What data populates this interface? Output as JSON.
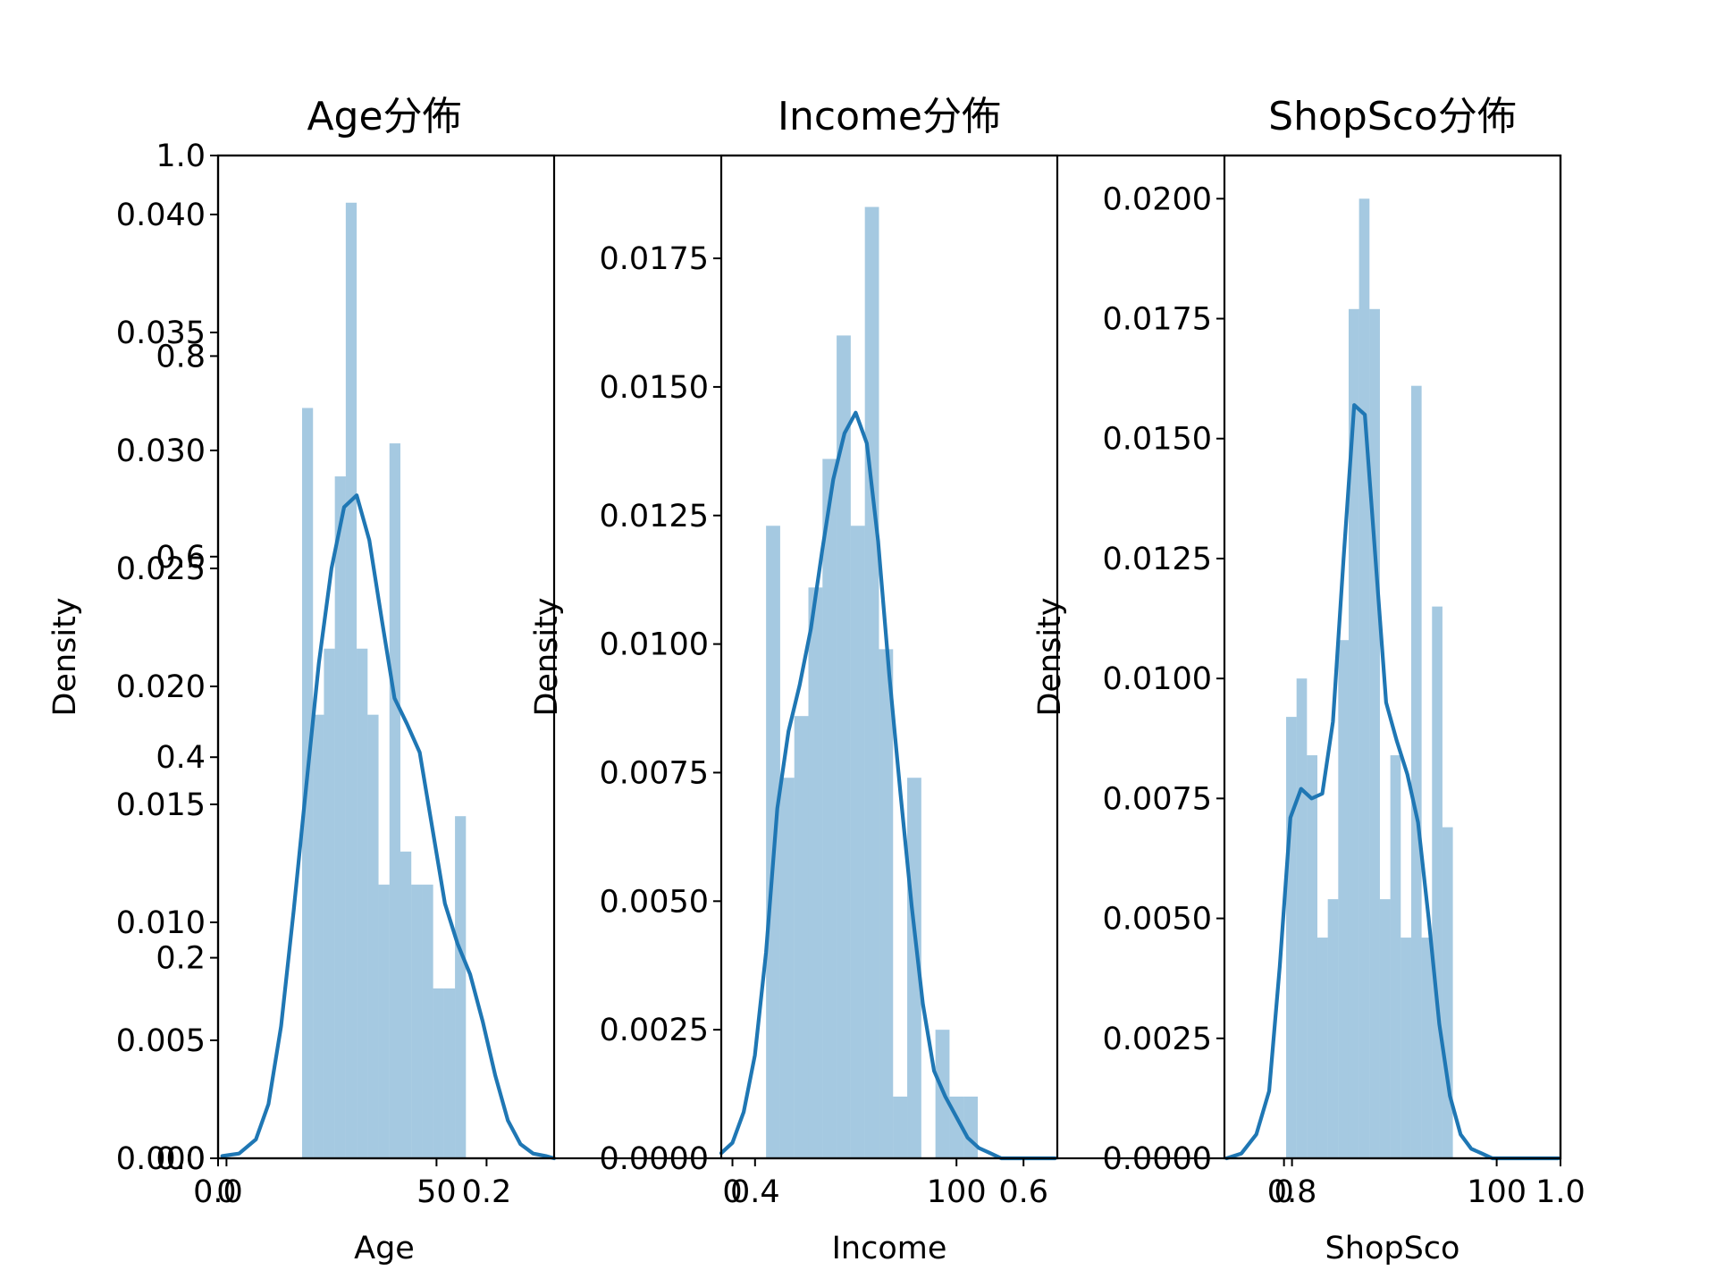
{
  "chart_data": [
    {
      "type": "bar",
      "id": "age",
      "title": "Age分佈",
      "xlabel": "Age",
      "ylabel": "Density",
      "xlim": [
        -2,
        78
      ],
      "ylim": [
        0,
        0.0425
      ],
      "xticks": [
        0,
        50
      ],
      "yticks": [
        "0.000",
        "0.005",
        "0.010",
        "0.015",
        "0.020",
        "0.025",
        "0.030",
        "0.035",
        "0.040"
      ],
      "bins": {
        "edges": [
          18,
          20.6,
          23.2,
          25.8,
          28.4,
          31,
          33.6,
          36.2,
          38.8,
          41.4,
          44,
          46.6,
          49.2,
          51.8,
          54.4,
          57,
          59.6,
          62.2,
          64.8,
          67.4,
          70
        ],
        "heights": [
          0.0318,
          0.0188,
          0.0216,
          0.0289,
          0.0405,
          0.0216,
          0.0188,
          0.0116,
          0.0303,
          0.013,
          0.0116,
          0.0116,
          0.0072,
          0.0072,
          0.0145,
          0,
          0,
          0,
          0,
          0
        ]
      },
      "kde": {
        "x": [
          -1,
          3,
          7,
          10,
          13,
          16,
          19,
          22,
          25,
          28,
          31,
          34,
          37,
          40,
          43,
          46,
          49,
          52,
          55,
          58,
          61,
          64,
          67,
          70,
          73,
          76,
          78
        ],
        "y": [
          0.0001,
          0.0002,
          0.0008,
          0.0023,
          0.0056,
          0.0105,
          0.0158,
          0.021,
          0.025,
          0.0276,
          0.0281,
          0.0262,
          0.0228,
          0.0195,
          0.0184,
          0.0172,
          0.014,
          0.0108,
          0.0091,
          0.0078,
          0.0058,
          0.0035,
          0.0016,
          0.0006,
          0.0002,
          0.0001,
          0
        ]
      }
    },
    {
      "type": "bar",
      "id": "income",
      "title": "Income分佈",
      "xlabel": "Income",
      "ylabel": "Density",
      "xlim": [
        -5,
        145
      ],
      "ylim": [
        0,
        0.0195
      ],
      "xticks": [
        0,
        100
      ],
      "yticks": [
        "0.0000",
        "0.0025",
        "0.0050",
        "0.0075",
        "0.0100",
        "0.0125",
        "0.0150",
        "0.0175"
      ],
      "bins": {
        "edges": [
          15,
          21.3,
          27.6,
          33.9,
          40.2,
          46.5,
          52.8,
          59.1,
          65.4,
          71.7,
          78,
          84.3,
          90.6,
          96.9,
          103.2,
          109.5,
          115.8,
          122.1,
          128.4,
          134.7,
          141
        ],
        "heights": [
          0.0123,
          0.0074,
          0.0086,
          0.0111,
          0.0136,
          0.016,
          0.0123,
          0.0185,
          0.0099,
          0.0012,
          0.0074,
          0,
          0.0025,
          0.0012,
          0.0012,
          0,
          0,
          0,
          0,
          0
        ]
      },
      "kde": {
        "x": [
          -5,
          0,
          5,
          10,
          15,
          20,
          25,
          30,
          35,
          40,
          45,
          50,
          55,
          60,
          65,
          70,
          75,
          80,
          85,
          90,
          95,
          100,
          105,
          110,
          115,
          120,
          125,
          130,
          135,
          140,
          144
        ],
        "y": [
          0.0001,
          0.0003,
          0.0009,
          0.002,
          0.004,
          0.0068,
          0.0083,
          0.0092,
          0.0103,
          0.0118,
          0.0132,
          0.0141,
          0.0145,
          0.0139,
          0.012,
          0.0094,
          0.0071,
          0.0049,
          0.003,
          0.0017,
          0.0012,
          0.0008,
          0.0004,
          0.0002,
          0.0001,
          0,
          0,
          0,
          0,
          0,
          0
        ]
      }
    },
    {
      "type": "bar",
      "id": "shopsco",
      "title": "ShopSco分佈",
      "xlabel": "ShopSco",
      "ylabel": "Density",
      "xlim": [
        -28,
        130
      ],
      "ylim": [
        0,
        0.0209
      ],
      "xticks": [
        0,
        100
      ],
      "yticks": [
        "0.0000",
        "0.0025",
        "0.0050",
        "0.0075",
        "0.0100",
        "0.0125",
        "0.0150",
        "0.0175",
        "0.0200"
      ],
      "bins": {
        "edges": [
          1,
          5.9,
          10.8,
          15.7,
          20.6,
          25.5,
          30.4,
          35.3,
          40.2,
          45.1,
          50,
          54.9,
          59.8,
          64.7,
          69.6,
          74.5,
          79.4,
          84.3,
          89.2,
          94.1,
          99
        ],
        "heights": [
          0.0092,
          0.01,
          0.0084,
          0.0046,
          0.0054,
          0.0108,
          0.0177,
          0.02,
          0.0177,
          0.0054,
          0.0084,
          0.0046,
          0.0161,
          0.0046,
          0.0115,
          0.0069,
          0,
          0,
          0,
          0
        ]
      },
      "kde": {
        "x": [
          -27,
          -20,
          -13,
          -7,
          -2,
          3,
          8,
          13,
          18,
          23,
          28,
          33,
          38,
          43,
          48,
          53,
          58,
          63,
          68,
          73,
          78,
          83,
          88,
          93,
          98,
          103,
          108,
          113,
          118,
          124,
          129
        ],
        "y": [
          0,
          0.0001,
          0.0005,
          0.0014,
          0.004,
          0.0071,
          0.0077,
          0.0075,
          0.0076,
          0.0091,
          0.0125,
          0.0157,
          0.0155,
          0.0125,
          0.0095,
          0.0087,
          0.008,
          0.007,
          0.005,
          0.0028,
          0.0013,
          0.0005,
          0.0002,
          0.0001,
          0,
          0,
          0,
          0,
          0,
          0,
          0
        ]
      }
    }
  ],
  "overlay_axis": {
    "xticks": [
      "0.0",
      "0.2",
      "0.4",
      "0.6",
      "0.8",
      "1.0"
    ],
    "yticks": [
      "0.0",
      "0.2",
      "0.4",
      "0.6",
      "0.8",
      "1.0"
    ]
  }
}
